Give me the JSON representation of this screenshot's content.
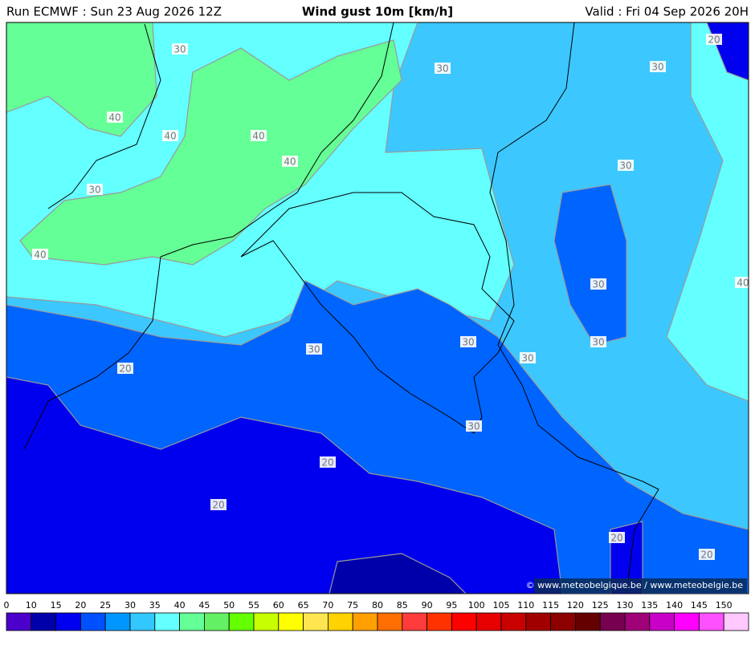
{
  "header": {
    "run": "Run ECMWF : Sun 23 Aug 2026 12Z",
    "title": "Wind gust 10m [km/h]",
    "valid": "Valid : Fri 04 Sep 2026 20H"
  },
  "contour_labels": [
    "30",
    "30",
    "20",
    "30",
    "40",
    "40",
    "40",
    "40",
    "30",
    "30",
    "40",
    "30",
    "40",
    "30",
    "30",
    "30",
    "30",
    "20",
    "30",
    "20",
    "20",
    "20",
    "20"
  ],
  "credit": "© www.meteobelgique.be / www.meteobelgie.be",
  "colorbar": {
    "ticks": [
      0,
      10,
      15,
      20,
      25,
      30,
      35,
      40,
      45,
      50,
      55,
      60,
      65,
      70,
      75,
      80,
      85,
      90,
      95,
      100,
      105,
      110,
      115,
      120,
      125,
      130,
      135,
      140,
      145,
      150
    ],
    "colors": [
      "#4b00cc",
      "#0000aa",
      "#0000ee",
      "#0050ff",
      "#0096ff",
      "#32c8ff",
      "#64ffff",
      "#64ff96",
      "#64f064",
      "#64ff00",
      "#c8ff00",
      "#ffff00",
      "#ffe650",
      "#ffd200",
      "#ffa000",
      "#ff6e00",
      "#ff3c3c",
      "#ff3200",
      "#ff0000",
      "#e60000",
      "#c80000",
      "#a00000",
      "#8c0000",
      "#640000",
      "#780050",
      "#a00078",
      "#c800c8",
      "#ff00ff",
      "#ff50ff",
      "#ffc8ff"
    ]
  }
}
